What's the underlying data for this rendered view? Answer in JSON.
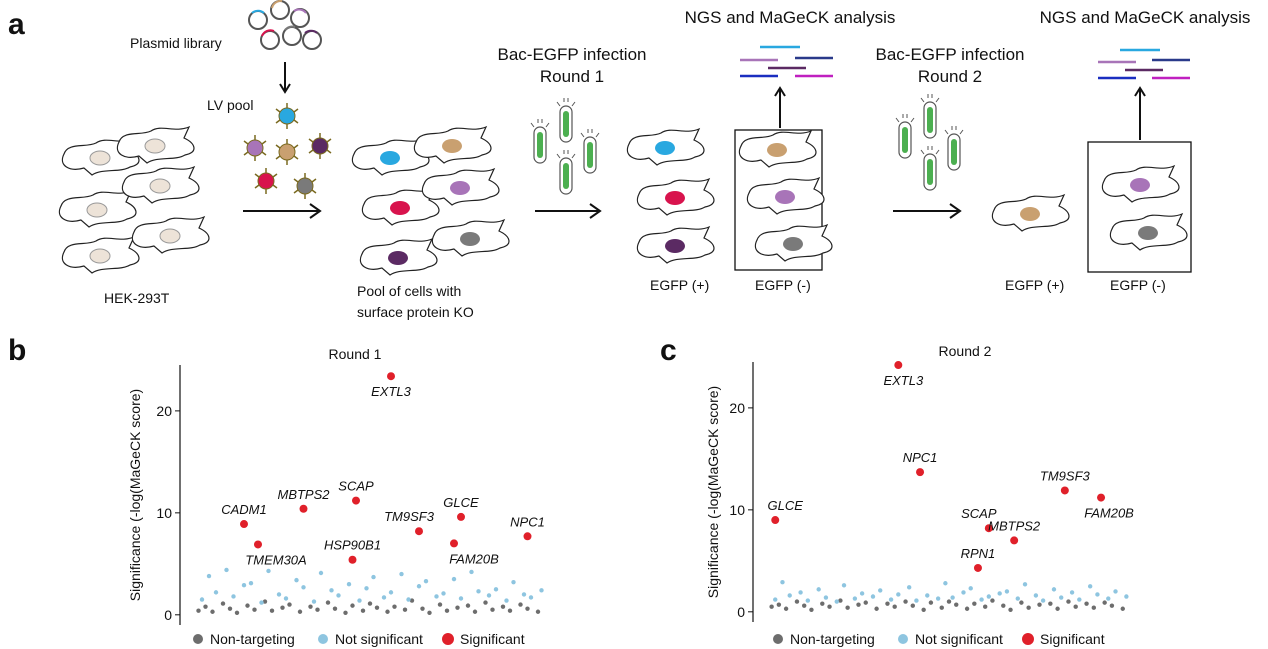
{
  "panel_labels": [
    "a",
    "b",
    "c"
  ],
  "diagram": {
    "plasmid_library": "Plasmid library",
    "lv_pool": "LV pool",
    "hek": "HEK-293T",
    "pool": [
      "Pool of cells with",
      "surface protein KO"
    ],
    "infection1": [
      "Bac-EGFP infection",
      "Round 1"
    ],
    "infection2": [
      "Bac-EGFP infection",
      "Round 2"
    ],
    "ngs1": "NGS and MaGeCK analysis",
    "ngs2": "NGS and MaGeCK analysis",
    "egfp1": [
      "EGFP (+)",
      "EGFP (-)"
    ],
    "egfp2": [
      "EGFP (+)",
      "EGFP (-)"
    ]
  },
  "chart_data": [
    {
      "type": "scatter",
      "title": "Round 1",
      "y_label": "Significance (-log(MaGeCK score)",
      "xlim": [
        0,
        100
      ],
      "ylim": [
        -1,
        24.5
      ],
      "yticks": [
        0,
        10,
        20
      ],
      "series": [
        {
          "name": "Non-targeting",
          "color": "#6d6d6d",
          "x": [
            1,
            3,
            5,
            8,
            10,
            12,
            15,
            17,
            20,
            22,
            25,
            27,
            30,
            33,
            35,
            38,
            40,
            43,
            45,
            48,
            50,
            52,
            55,
            57,
            60,
            62,
            65,
            67,
            70,
            72,
            75,
            78,
            80,
            83,
            85,
            88,
            90,
            93,
            95,
            98
          ],
          "values": [
            0.4,
            0.8,
            0.3,
            1.1,
            0.6,
            0.2,
            0.9,
            0.5,
            1.3,
            0.4,
            0.7,
            1.0,
            0.3,
            0.8,
            0.5,
            1.2,
            0.6,
            0.2,
            0.9,
            0.4,
            1.1,
            0.7,
            0.3,
            0.8,
            0.5,
            1.4,
            0.6,
            0.2,
            1.0,
            0.4,
            0.7,
            0.9,
            0.3,
            1.2,
            0.5,
            0.8,
            0.4,
            1.0,
            0.6,
            0.3
          ]
        },
        {
          "name": "Not significant",
          "color": "#8ec5e0",
          "x": [
            2,
            4,
            6,
            9,
            11,
            14,
            16,
            19,
            21,
            24,
            26,
            29,
            31,
            34,
            36,
            39,
            41,
            44,
            47,
            49,
            51,
            54,
            56,
            59,
            61,
            64,
            66,
            69,
            71,
            74,
            76,
            79,
            81,
            84,
            86,
            89,
            91,
            94,
            96,
            99
          ],
          "values": [
            1.5,
            3.8,
            2.2,
            4.4,
            1.8,
            2.9,
            3.1,
            1.2,
            4.3,
            2.0,
            1.6,
            3.4,
            2.7,
            1.3,
            4.1,
            2.4,
            1.9,
            3.0,
            1.4,
            2.6,
            3.7,
            1.7,
            2.2,
            4.0,
            1.5,
            2.8,
            3.3,
            1.8,
            2.1,
            3.5,
            1.6,
            4.2,
            2.3,
            1.9,
            2.5,
            1.4,
            3.2,
            2.0,
            1.7,
            2.4
          ]
        },
        {
          "name": "Significant",
          "color": "#e0202a",
          "x": [
            14,
            18,
            31,
            46,
            45,
            56,
            64,
            76,
            74,
            95
          ],
          "values": [
            8.9,
            6.9,
            10.4,
            11.2,
            5.4,
            23.4,
            8.2,
            9.6,
            7.0,
            7.7
          ],
          "point_labels": [
            "CADM1",
            "TMEM30A",
            "MBTPS2",
            "SCAP",
            "HSP90B1",
            "EXTL3",
            "TM9SF3",
            "GLCE",
            "FAM20B",
            "NPC1"
          ]
        }
      ]
    },
    {
      "type": "scatter",
      "title": "Round 2",
      "y_label": "Significance (-log(MaGeCK score)",
      "xlim": [
        0,
        100
      ],
      "ylim": [
        -1,
        24.5
      ],
      "yticks": [
        0,
        10,
        20
      ],
      "series": [
        {
          "name": "Non-targeting",
          "color": "#6d6d6d",
          "x": [
            1,
            3,
            5,
            8,
            10,
            12,
            15,
            17,
            20,
            22,
            25,
            27,
            30,
            33,
            35,
            38,
            40,
            43,
            45,
            48,
            50,
            52,
            55,
            57,
            60,
            62,
            65,
            67,
            70,
            72,
            75,
            78,
            80,
            83,
            85,
            88,
            90,
            93,
            95,
            98
          ],
          "values": [
            0.5,
            0.7,
            0.3,
            1.0,
            0.6,
            0.2,
            0.8,
            0.5,
            1.1,
            0.4,
            0.7,
            0.9,
            0.3,
            0.8,
            0.5,
            1.0,
            0.6,
            0.2,
            0.9,
            0.4,
            1.0,
            0.7,
            0.3,
            0.8,
            0.5,
            1.1,
            0.6,
            0.2,
            0.9,
            0.4,
            0.7,
            0.8,
            0.3,
            1.0,
            0.5,
            0.8,
            0.4,
            0.9,
            0.6,
            0.3
          ]
        },
        {
          "name": "Not significant",
          "color": "#8ec5e0",
          "x": [
            2,
            4,
            6,
            9,
            11,
            14,
            16,
            19,
            21,
            24,
            26,
            29,
            31,
            34,
            36,
            39,
            41,
            44,
            47,
            49,
            51,
            54,
            56,
            59,
            61,
            64,
            66,
            69,
            71,
            74,
            76,
            79,
            81,
            84,
            86,
            89,
            91,
            94,
            96,
            99
          ],
          "values": [
            1.2,
            2.9,
            1.6,
            1.9,
            1.1,
            2.2,
            1.4,
            1.0,
            2.6,
            1.3,
            1.8,
            1.5,
            2.1,
            1.2,
            1.7,
            2.4,
            1.1,
            1.6,
            1.3,
            2.8,
            1.4,
            1.9,
            2.3,
            1.2,
            1.5,
            1.8,
            2.0,
            1.3,
            2.7,
            1.6,
            1.1,
            2.2,
            1.4,
            1.9,
            1.2,
            2.5,
            1.7,
            1.3,
            2.0,
            1.5
          ]
        },
        {
          "name": "Significant",
          "color": "#e0202a",
          "x": [
            2,
            36,
            42,
            61,
            68,
            58,
            82,
            92
          ],
          "values": [
            9.0,
            24.2,
            13.7,
            8.2,
            7.0,
            4.3,
            11.9,
            11.2
          ],
          "point_labels": [
            "GLCE",
            "EXTL3",
            "NPC1",
            "SCAP",
            "MBTPS2",
            "RPN1",
            "TM9SF3",
            "FAM20B"
          ]
        }
      ]
    }
  ]
}
